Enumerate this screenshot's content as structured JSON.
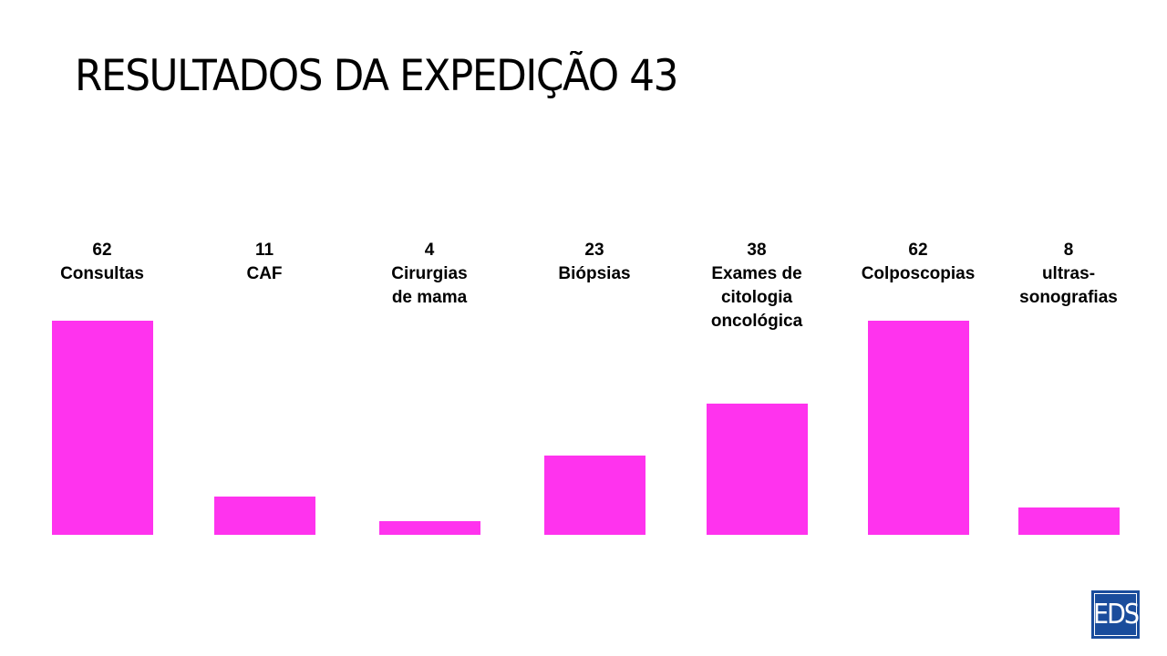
{
  "title": "RESULTADOS DA EXPEDIÇÃO 43",
  "logo": {
    "text": "EDS",
    "color": "#1a4d9c"
  },
  "chart_data": {
    "type": "bar",
    "bar_color": "#ff33ee",
    "categories": [
      [
        "Consultas"
      ],
      [
        "CAF"
      ],
      [
        "Cirurgias",
        "de mama"
      ],
      [
        "Biópsias"
      ],
      [
        "Exames de",
        "citologia",
        "oncológica"
      ],
      [
        "Colposcopias"
      ],
      [
        "ultras-",
        "sonografias"
      ]
    ],
    "values": [
      62,
      11,
      4,
      23,
      38,
      62,
      8
    ],
    "grid": false,
    "legend": "none"
  }
}
